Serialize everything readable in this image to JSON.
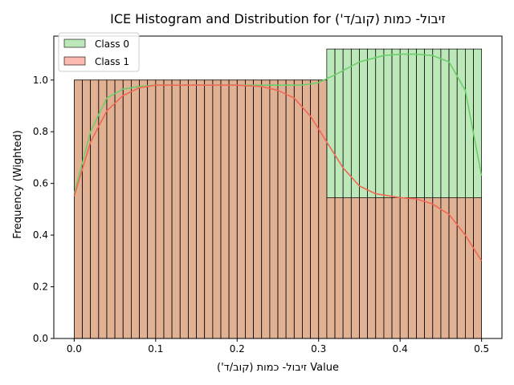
{
  "chart_data": {
    "type": "histogram",
    "title": "ICE Histogram and Distribution for זיבול- כמות (קוב/ד')",
    "xlabel": "זיבול- כמות (קוב/ד') Value",
    "ylabel": "Frequency (Wighted)",
    "xlim": [
      -0.025,
      0.525
    ],
    "ylim": [
      0,
      1.17
    ],
    "x_ticks": [
      "0.0",
      "0.1",
      "0.2",
      "0.3",
      "0.4",
      "0.5"
    ],
    "y_ticks": [
      "0.0",
      "0.2",
      "0.4",
      "0.6",
      "0.8",
      "1.0"
    ],
    "legend_position": "top-left",
    "bins": {
      "first": {
        "from": 0.0,
        "to": 0.31,
        "count": 31
      },
      "second": {
        "from": 0.31,
        "to": 0.5,
        "count": 19
      }
    },
    "series": [
      {
        "name": "Class 0",
        "color": "#8fd98c",
        "line_color": "#6cd06a",
        "bar_values": [
          1.0,
          1.12
        ],
        "kde": [
          [
            0.0,
            0.56
          ],
          [
            0.02,
            0.8
          ],
          [
            0.04,
            0.93
          ],
          [
            0.06,
            0.965
          ],
          [
            0.08,
            0.975
          ],
          [
            0.1,
            0.98
          ],
          [
            0.15,
            0.98
          ],
          [
            0.2,
            0.98
          ],
          [
            0.25,
            0.98
          ],
          [
            0.28,
            0.98
          ],
          [
            0.3,
            0.99
          ],
          [
            0.32,
            1.02
          ],
          [
            0.35,
            1.07
          ],
          [
            0.38,
            1.095
          ],
          [
            0.4,
            1.1
          ],
          [
            0.42,
            1.1
          ],
          [
            0.44,
            1.095
          ],
          [
            0.46,
            1.07
          ],
          [
            0.48,
            0.96
          ],
          [
            0.5,
            0.63
          ]
        ]
      },
      {
        "name": "Class 1",
        "color": "#fa8c7c",
        "line_color": "#f36755",
        "bar_values": [
          1.0,
          0.545
        ],
        "kde": [
          [
            0.0,
            0.55
          ],
          [
            0.02,
            0.76
          ],
          [
            0.04,
            0.88
          ],
          [
            0.06,
            0.94
          ],
          [
            0.08,
            0.97
          ],
          [
            0.1,
            0.98
          ],
          [
            0.15,
            0.98
          ],
          [
            0.2,
            0.98
          ],
          [
            0.23,
            0.975
          ],
          [
            0.25,
            0.96
          ],
          [
            0.27,
            0.93
          ],
          [
            0.29,
            0.86
          ],
          [
            0.31,
            0.76
          ],
          [
            0.33,
            0.66
          ],
          [
            0.35,
            0.59
          ],
          [
            0.37,
            0.56
          ],
          [
            0.4,
            0.545
          ],
          [
            0.42,
            0.54
          ],
          [
            0.44,
            0.52
          ],
          [
            0.46,
            0.48
          ],
          [
            0.48,
            0.4
          ],
          [
            0.5,
            0.3
          ]
        ]
      }
    ]
  }
}
